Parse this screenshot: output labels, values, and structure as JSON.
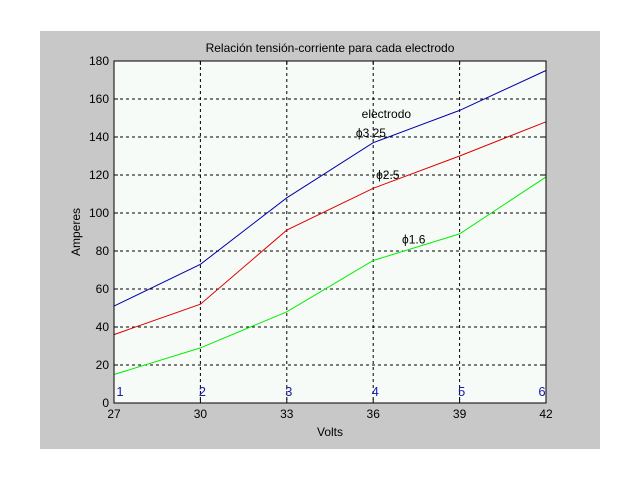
{
  "colors": {
    "figure_bg": "#c8c8c8",
    "axes_bg": "#f7fbf7",
    "grid": "#000000",
    "index_labels": "#1a1aa6"
  },
  "chart_data": {
    "type": "line",
    "title": "Relación tensión-corriente para cada electrodo",
    "xlabel": "Volts",
    "ylabel": "Amperes",
    "xlim": [
      27,
      42
    ],
    "ylim": [
      0,
      180
    ],
    "xticks": [
      "27",
      "30",
      "33",
      "36",
      "39",
      "42"
    ],
    "yticks": [
      "0",
      "20",
      "40",
      "60",
      "80",
      "100",
      "120",
      "140",
      "160",
      "180"
    ],
    "grid": true,
    "x": [
      27,
      30,
      33,
      36,
      39,
      42
    ],
    "series": [
      {
        "color": "#0000aa",
        "values": [
          51,
          73,
          108,
          137,
          154,
          175
        ]
      },
      {
        "color": "#dd0000",
        "values": [
          36,
          52,
          91,
          113,
          130,
          148
        ]
      },
      {
        "color": "#00ee00",
        "values": [
          15,
          29,
          48,
          75,
          89,
          119
        ]
      }
    ],
    "point_labels": [
      "1",
      "2",
      "3",
      "4",
      "5",
      "6"
    ],
    "annotations": [
      {
        "text": "electrodo",
        "x": 35.6,
        "y": 150
      },
      {
        "text": "ϕ3.25",
        "x": 35.4,
        "y": 140
      },
      {
        "text": "ϕ2.5",
        "x": 36.1,
        "y": 118
      },
      {
        "text": "ϕ1.6",
        "x": 37.0,
        "y": 84
      }
    ]
  }
}
